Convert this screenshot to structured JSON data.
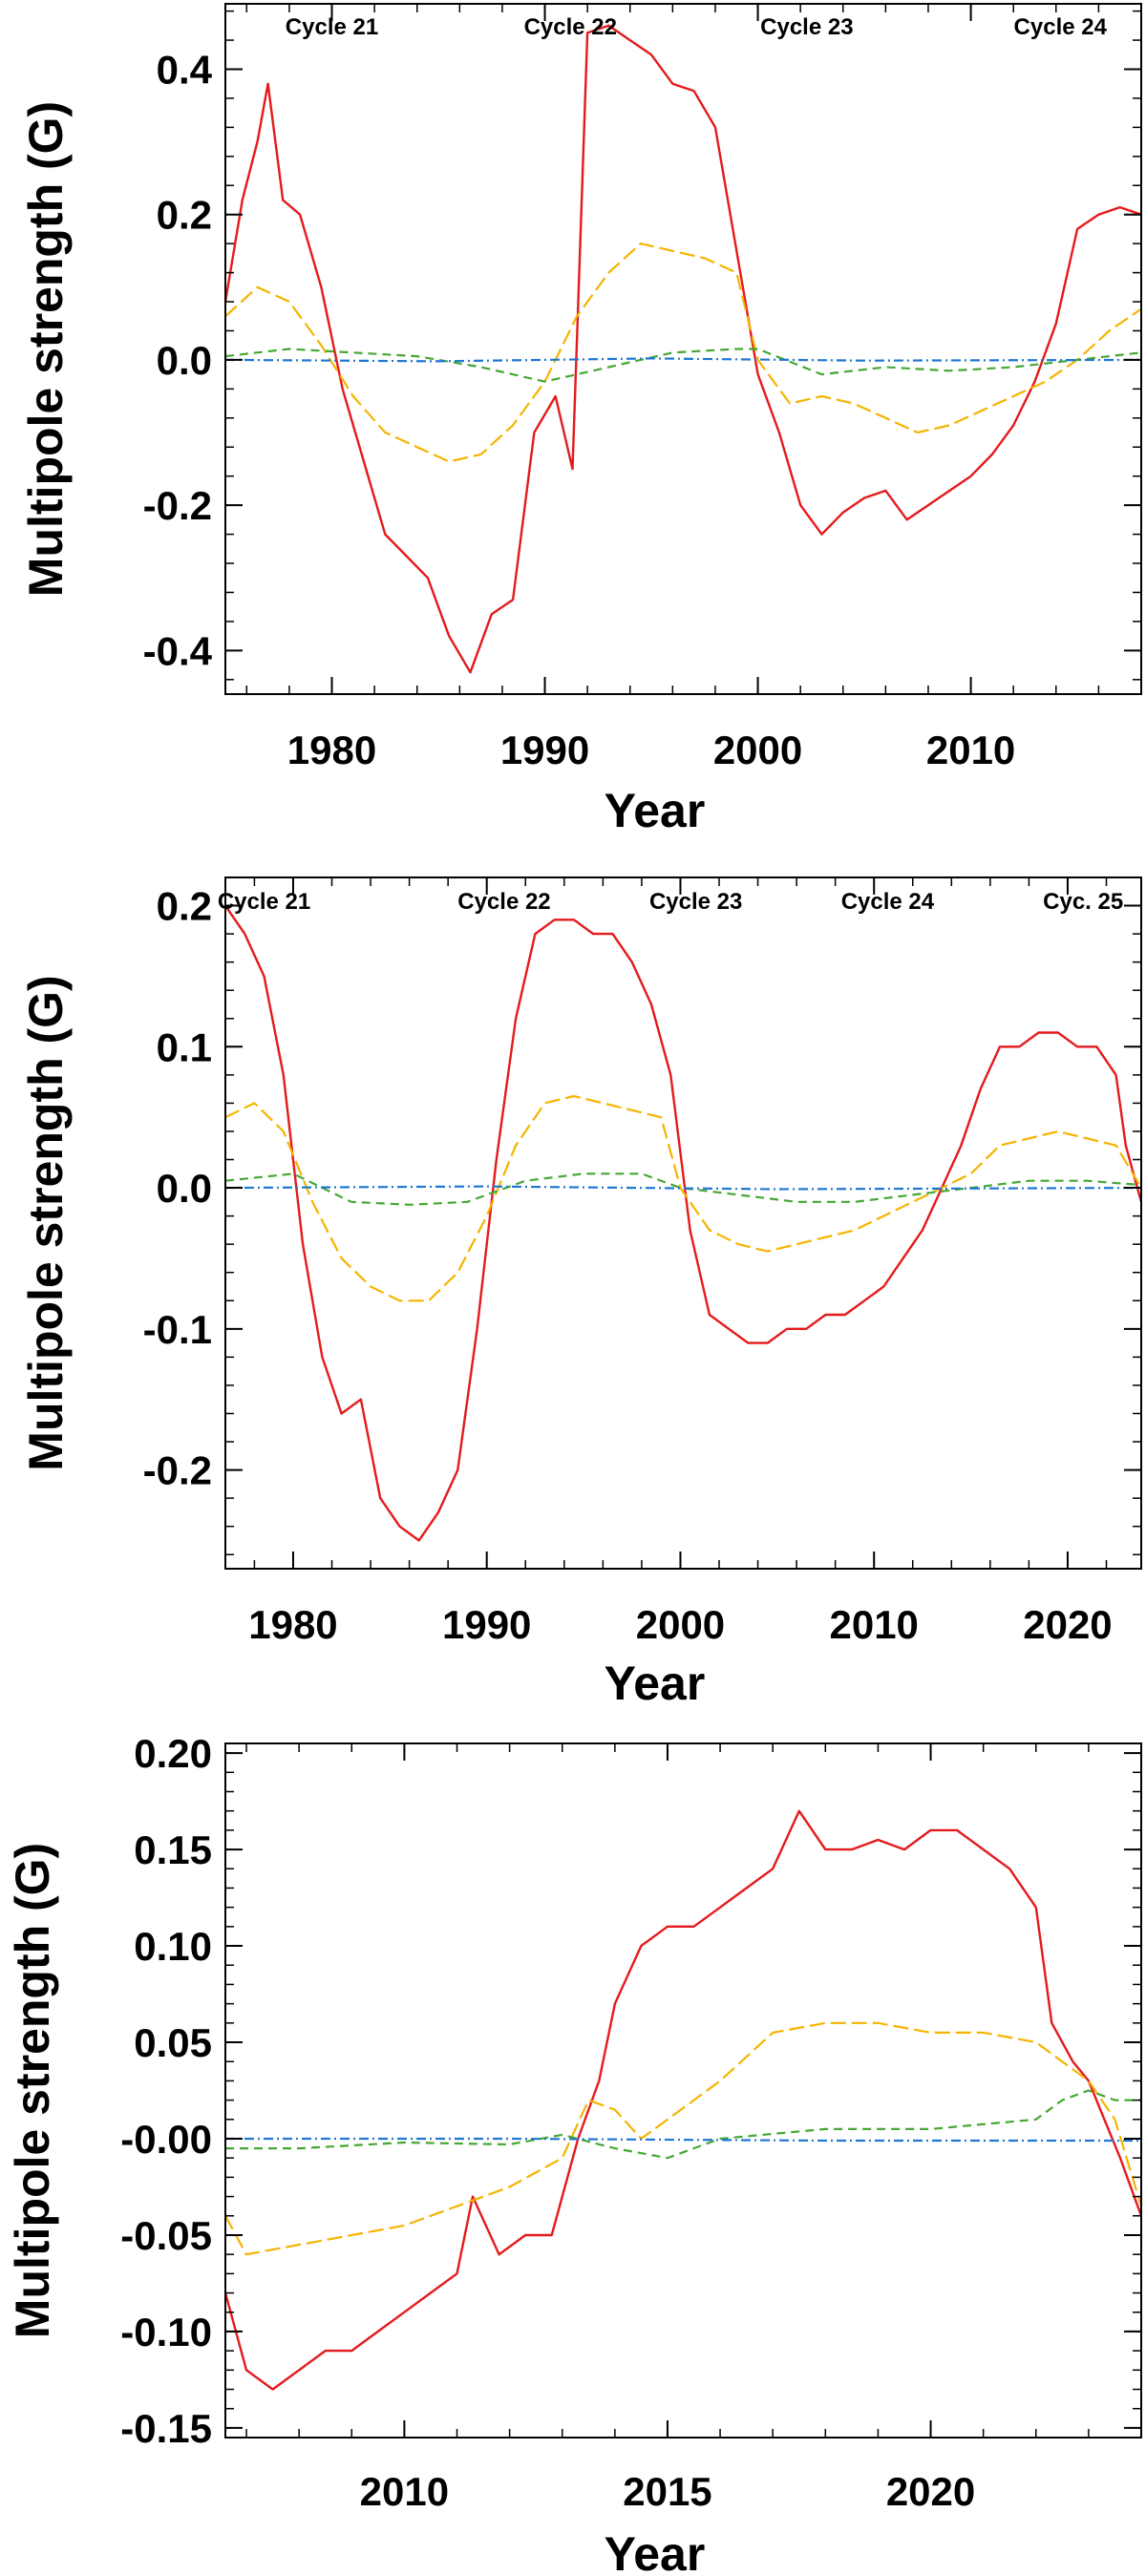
{
  "colors": {
    "dipole": "#e41a1c",
    "quadrupole": "#f5b400",
    "octupole": "#44a832",
    "hexadecapole": "#1f77d4",
    "axis": "#000000"
  },
  "chart_data": [
    {
      "type": "line",
      "xlabel": "Year",
      "ylabel": "Multipole strength (G)",
      "xlim": [
        1975.0,
        2018.0
      ],
      "ylim": [
        -0.46,
        0.49
      ],
      "xticks": [
        1980,
        1990,
        2000,
        2010
      ],
      "xtick_labels": [
        "1980",
        "1990",
        "2000",
        "2010"
      ],
      "yticks": [
        -0.4,
        -0.2,
        0.0,
        0.2,
        0.4
      ],
      "ytick_labels": [
        "-0.4",
        "-0.2",
        "0.0",
        "0.2",
        "0.4"
      ],
      "cycle_labels": [
        {
          "text": "Cycle 21",
          "x": 1980.0
        },
        {
          "text": "Cycle 22",
          "x": 1991.2
        },
        {
          "text": "Cycle 23",
          "x": 2002.3
        },
        {
          "text": "Cycle 24",
          "x": 2014.2
        }
      ],
      "series": [
        {
          "key": "dipole",
          "style": "solid",
          "x": [
            1975.0,
            1975.8,
            1976.5,
            1977.0,
            1977.7,
            1978.5,
            1979.5,
            1980.5,
            1981.5,
            1982.5,
            1983.5,
            1984.5,
            1985.5,
            1986.5,
            1987.5,
            1988.5,
            1989.5,
            1990.5,
            1991.3,
            1992.0,
            1993.0,
            1994.0,
            1995.0,
            1996.0,
            1997.0,
            1998.0,
            1999.0,
            2000.0,
            2001.0,
            2002.0,
            2003.0,
            2004.0,
            2005.0,
            2006.0,
            2007.0,
            2008.0,
            2009.0,
            2010.0,
            2011.0,
            2012.0,
            2013.0,
            2014.0,
            2015.0,
            2016.0,
            2017.0,
            2018.0
          ],
          "y": [
            0.08,
            0.22,
            0.3,
            0.38,
            0.22,
            0.2,
            0.1,
            -0.04,
            -0.14,
            -0.24,
            -0.27,
            -0.3,
            -0.38,
            -0.43,
            -0.35,
            -0.33,
            -0.1,
            -0.05,
            -0.15,
            0.45,
            0.46,
            0.44,
            0.42,
            0.38,
            0.37,
            0.32,
            0.15,
            -0.02,
            -0.1,
            -0.2,
            -0.24,
            -0.21,
            -0.19,
            -0.18,
            -0.22,
            -0.2,
            -0.18,
            -0.16,
            -0.13,
            -0.09,
            -0.03,
            0.05,
            0.18,
            0.2,
            0.21,
            0.2
          ]
        },
        {
          "key": "quadrupole",
          "style": "longdash",
          "x": [
            1975.0,
            1976.5,
            1978.0,
            1979.5,
            1981.0,
            1982.5,
            1984.0,
            1985.5,
            1987.0,
            1988.5,
            1990.0,
            1991.5,
            1993.0,
            1994.5,
            1996.0,
            1997.5,
            1999.0,
            2000.0,
            2001.5,
            2003.0,
            2004.5,
            2006.0,
            2007.5,
            2009.0,
            2010.5,
            2012.0,
            2013.5,
            2015.0,
            2016.5,
            2018.0
          ],
          "y": [
            0.06,
            0.1,
            0.08,
            0.02,
            -0.05,
            -0.1,
            -0.12,
            -0.14,
            -0.13,
            -0.09,
            -0.03,
            0.06,
            0.12,
            0.16,
            0.15,
            0.14,
            0.12,
            0.0,
            -0.06,
            -0.05,
            -0.06,
            -0.08,
            -0.1,
            -0.09,
            -0.07,
            -0.05,
            -0.03,
            0.0,
            0.04,
            0.07
          ]
        },
        {
          "key": "octupole",
          "style": "dash",
          "x": [
            1975.0,
            1978.0,
            1981.0,
            1984.0,
            1987.0,
            1990.0,
            1993.0,
            1996.0,
            1999.0,
            2000.0,
            2003.0,
            2006.0,
            2009.0,
            2012.0,
            2015.0,
            2018.0
          ],
          "y": [
            0.005,
            0.015,
            0.01,
            0.005,
            -0.01,
            -0.03,
            -0.01,
            0.01,
            0.015,
            0.015,
            -0.02,
            -0.01,
            -0.015,
            -0.01,
            0.0,
            0.01
          ]
        },
        {
          "key": "hexadecapole",
          "style": "dashdot",
          "x": [
            1975.0,
            1985.0,
            1995.0,
            2005.0,
            2018.0
          ],
          "y": [
            0.0,
            -0.002,
            0.002,
            -0.001,
            0.0
          ]
        }
      ]
    },
    {
      "type": "line",
      "xlabel": "Year",
      "ylabel": "Multipole strength (G)",
      "xlim": [
        1976.5,
        2023.8
      ],
      "ylim": [
        -0.27,
        0.22
      ],
      "xticks": [
        1980,
        1990,
        2000,
        2010,
        2020
      ],
      "xtick_labels": [
        "1980",
        "1990",
        "2000",
        "2010",
        "2020"
      ],
      "yticks": [
        -0.2,
        -0.1,
        0.0,
        0.1,
        0.2
      ],
      "ytick_labels": [
        "-0.2",
        "-0.1",
        "0.0",
        "0.1",
        "0.2"
      ],
      "cycle_labels": [
        {
          "text": "Cycle 21",
          "x": 1978.5
        },
        {
          "text": "Cycle 22",
          "x": 1990.9
        },
        {
          "text": "Cycle 23",
          "x": 2000.8
        },
        {
          "text": "Cycle 24",
          "x": 2010.7
        },
        {
          "text": "Cyc. 25",
          "x": 2020.8
        }
      ],
      "series": [
        {
          "key": "dipole",
          "style": "solid",
          "x": [
            1976.5,
            1977.5,
            1978.5,
            1979.5,
            1980.5,
            1981.5,
            1982.5,
            1983.5,
            1984.5,
            1985.5,
            1986.5,
            1987.5,
            1988.5,
            1989.5,
            1990.5,
            1991.5,
            1992.5,
            1993.5,
            1994.5,
            1995.5,
            1996.5,
            1997.5,
            1998.5,
            1999.5,
            2000.5,
            2001.5,
            2002.5,
            2003.5,
            2004.5,
            2005.5,
            2006.5,
            2007.5,
            2008.5,
            2009.5,
            2010.5,
            2011.5,
            2012.5,
            2013.5,
            2014.5,
            2015.5,
            2016.5,
            2017.5,
            2018.5,
            2019.5,
            2020.5,
            2021.5,
            2022.5,
            2023.0,
            2023.8
          ],
          "y": [
            0.2,
            0.18,
            0.15,
            0.08,
            -0.04,
            -0.12,
            -0.16,
            -0.15,
            -0.22,
            -0.24,
            -0.25,
            -0.23,
            -0.2,
            -0.1,
            0.02,
            0.12,
            0.18,
            0.19,
            0.19,
            0.18,
            0.18,
            0.16,
            0.13,
            0.08,
            -0.03,
            -0.09,
            -0.1,
            -0.11,
            -0.11,
            -0.1,
            -0.1,
            -0.09,
            -0.09,
            -0.08,
            -0.07,
            -0.05,
            -0.03,
            0.0,
            0.03,
            0.07,
            0.1,
            0.1,
            0.11,
            0.11,
            0.1,
            0.1,
            0.08,
            0.03,
            -0.01
          ]
        },
        {
          "key": "quadrupole",
          "style": "longdash",
          "x": [
            1976.5,
            1978.0,
            1979.5,
            1981.0,
            1982.5,
            1984.0,
            1985.5,
            1987.0,
            1988.5,
            1990.0,
            1991.5,
            1993.0,
            1994.5,
            1996.0,
            1997.5,
            1999.0,
            2000.0,
            2001.5,
            2003.0,
            2004.5,
            2006.0,
            2007.5,
            2009.0,
            2010.5,
            2012.0,
            2013.5,
            2015.0,
            2016.5,
            2018.0,
            2019.5,
            2021.0,
            2022.5,
            2023.8
          ],
          "y": [
            0.05,
            0.06,
            0.04,
            -0.01,
            -0.05,
            -0.07,
            -0.08,
            -0.08,
            -0.06,
            -0.02,
            0.03,
            0.06,
            0.065,
            0.06,
            0.055,
            0.05,
            0.0,
            -0.03,
            -0.04,
            -0.045,
            -0.04,
            -0.035,
            -0.03,
            -0.02,
            -0.01,
            0.0,
            0.01,
            0.03,
            0.035,
            0.04,
            0.035,
            0.03,
            0.0
          ]
        },
        {
          "key": "octupole",
          "style": "dash",
          "x": [
            1976.5,
            1980.0,
            1983.0,
            1986.0,
            1989.0,
            1992.0,
            1995.0,
            1998.0,
            2000.0,
            2003.0,
            2006.0,
            2009.0,
            2012.0,
            2015.0,
            2018.0,
            2021.0,
            2023.8
          ],
          "y": [
            0.005,
            0.01,
            -0.01,
            -0.012,
            -0.01,
            0.005,
            0.01,
            0.01,
            0.0,
            -0.005,
            -0.01,
            -0.01,
            -0.005,
            0.0,
            0.005,
            0.005,
            0.002
          ]
        },
        {
          "key": "hexadecapole",
          "style": "dashdot",
          "x": [
            1976.5,
            1990.0,
            2005.0,
            2023.8
          ],
          "y": [
            0.0,
            0.001,
            -0.001,
            0.0
          ]
        }
      ]
    },
    {
      "type": "line",
      "xlabel": "Year",
      "ylabel": "Multipole strength (G)",
      "xlim": [
        2006.6,
        2024.0
      ],
      "ylim": [
        -0.155,
        0.205
      ],
      "xticks": [
        2010,
        2015,
        2020
      ],
      "xtick_labels": [
        "2010",
        "2015",
        "2020"
      ],
      "yticks": [
        -0.15,
        -0.1,
        -0.05,
        0.0,
        0.05,
        0.1,
        0.15,
        0.2
      ],
      "ytick_labels": [
        "-0.15",
        "-0.10",
        "-0.05",
        "-0.00",
        "0.05",
        "0.10",
        "0.15",
        "0.20"
      ],
      "series": [
        {
          "key": "dipole",
          "style": "solid",
          "x": [
            2006.6,
            2007.0,
            2007.5,
            2008.0,
            2008.5,
            2009.0,
            2009.5,
            2010.0,
            2010.5,
            2011.0,
            2011.3,
            2011.8,
            2012.3,
            2012.8,
            2013.3,
            2013.7,
            2014.0,
            2014.5,
            2015.0,
            2015.5,
            2016.0,
            2016.5,
            2017.0,
            2017.5,
            2018.0,
            2018.5,
            2019.0,
            2019.5,
            2020.0,
            2020.5,
            2021.0,
            2021.5,
            2022.0,
            2022.3,
            2022.7,
            2023.0,
            2023.3,
            2023.6,
            2024.0
          ],
          "y": [
            -0.08,
            -0.12,
            -0.13,
            -0.12,
            -0.11,
            -0.11,
            -0.1,
            -0.09,
            -0.08,
            -0.07,
            -0.03,
            -0.06,
            -0.05,
            -0.05,
            0.0,
            0.03,
            0.07,
            0.1,
            0.11,
            0.11,
            0.12,
            0.13,
            0.14,
            0.17,
            0.15,
            0.15,
            0.155,
            0.15,
            0.16,
            0.16,
            0.15,
            0.14,
            0.12,
            0.06,
            0.04,
            0.03,
            0.01,
            -0.01,
            -0.04
          ]
        },
        {
          "key": "quadrupole",
          "style": "longdash",
          "x": [
            2006.6,
            2007.0,
            2008.0,
            2009.0,
            2010.0,
            2011.0,
            2012.0,
            2013.0,
            2013.5,
            2014.0,
            2014.5,
            2015.0,
            2016.0,
            2017.0,
            2018.0,
            2019.0,
            2020.0,
            2021.0,
            2022.0,
            2022.5,
            2023.0,
            2023.5,
            2024.0
          ],
          "y": [
            -0.04,
            -0.06,
            -0.055,
            -0.05,
            -0.045,
            -0.035,
            -0.025,
            -0.01,
            0.02,
            0.015,
            0.0,
            0.01,
            0.03,
            0.055,
            0.06,
            0.06,
            0.055,
            0.055,
            0.05,
            0.04,
            0.03,
            0.01,
            -0.035
          ]
        },
        {
          "key": "octupole",
          "style": "dash",
          "x": [
            2006.6,
            2008.0,
            2010.0,
            2012.0,
            2013.0,
            2014.0,
            2015.0,
            2016.0,
            2018.0,
            2020.0,
            2022.0,
            2022.5,
            2023.0,
            2023.5,
            2024.0
          ],
          "y": [
            -0.005,
            -0.005,
            -0.002,
            -0.003,
            0.002,
            -0.005,
            -0.01,
            0.0,
            0.005,
            0.005,
            0.01,
            0.02,
            0.025,
            0.02,
            0.02
          ]
        },
        {
          "key": "hexadecapole",
          "style": "dashdot",
          "x": [
            2006.6,
            2012.0,
            2018.0,
            2024.0
          ],
          "y": [
            0.0,
            0.0,
            -0.001,
            -0.001
          ]
        }
      ]
    }
  ]
}
